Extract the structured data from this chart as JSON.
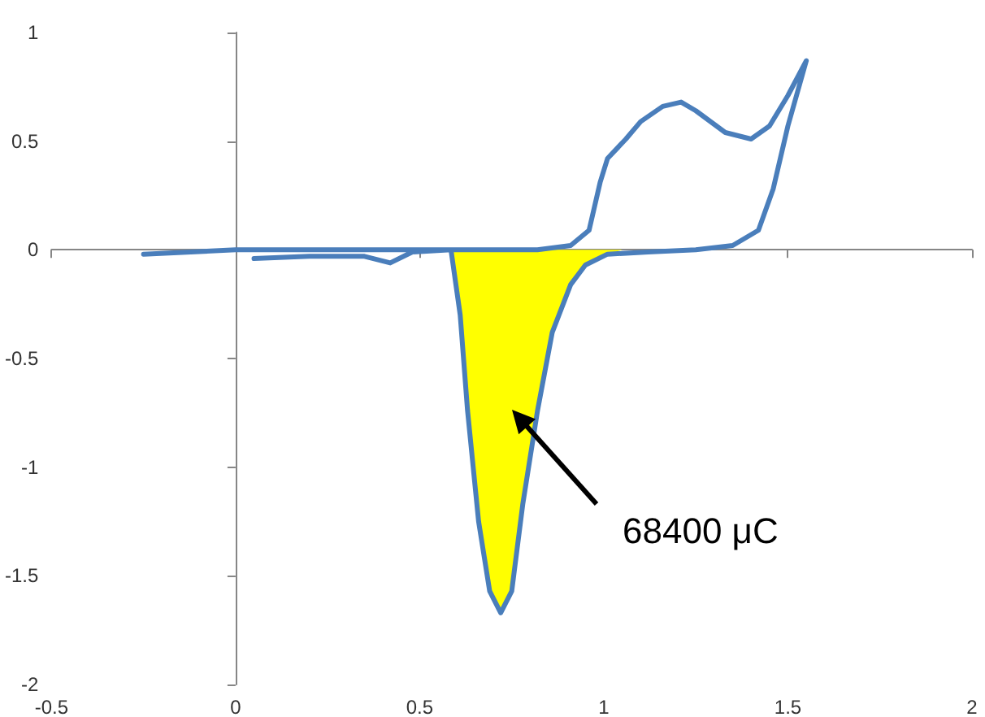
{
  "chart_data": {
    "type": "line",
    "xlim": [
      -0.5,
      2
    ],
    "ylim": [
      -2,
      1
    ],
    "xticks": [
      -0.5,
      0,
      0.5,
      1,
      1.5,
      2
    ],
    "yticks": [
      -2,
      -1.5,
      -1,
      -0.5,
      0,
      0.5,
      1
    ],
    "series": [
      {
        "type": "area",
        "color": "#ffff00",
        "x": [
          0.585,
          0.61,
          0.63,
          0.66,
          0.69,
          0.72,
          0.75,
          0.78,
          0.82,
          0.86,
          0.91,
          0.95,
          1.01,
          1.05
        ],
        "values": [
          0,
          -0.3,
          -0.74,
          -1.25,
          -1.57,
          -1.67,
          -1.57,
          -1.17,
          -0.74,
          -0.38,
          -0.16,
          -0.07,
          -0.02,
          0
        ]
      },
      {
        "color": "#4a7ebb",
        "x": [
          0.05,
          0.2,
          0.35,
          0.42,
          0.48,
          0.585,
          0.61,
          0.63,
          0.66,
          0.69,
          0.72,
          0.75,
          0.78,
          0.82,
          0.86,
          0.91,
          0.95,
          1.01,
          1.12,
          1.25,
          1.35,
          1.42,
          1.46,
          1.5,
          1.55,
          1.5,
          1.45,
          1.4,
          1.33,
          1.25,
          1.21,
          1.16,
          1.1,
          1.06,
          1.01,
          0.99,
          0.96,
          0.91,
          0.82,
          0.6,
          0.3,
          0,
          -0.25
        ],
        "values": [
          -0.04,
          -0.03,
          -0.03,
          -0.06,
          -0.01,
          0,
          -0.3,
          -0.74,
          -1.25,
          -1.57,
          -1.67,
          -1.57,
          -1.17,
          -0.74,
          -0.38,
          -0.16,
          -0.07,
          -0.02,
          -0.01,
          0,
          0.02,
          0.09,
          0.28,
          0.57,
          0.87,
          0.71,
          0.57,
          0.51,
          0.54,
          0.64,
          0.68,
          0.66,
          0.59,
          0.51,
          0.42,
          0.31,
          0.09,
          0.02,
          0,
          0,
          0,
          0,
          -0.02
        ]
      }
    ],
    "annotations": [
      "68400 μC"
    ],
    "marker": "none"
  }
}
